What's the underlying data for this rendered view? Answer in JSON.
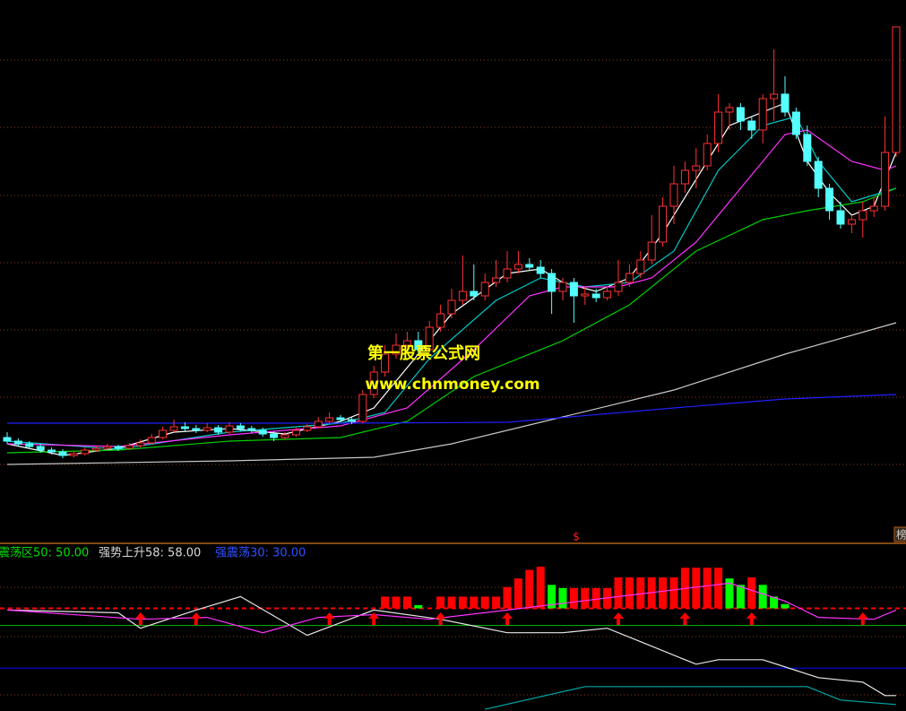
{
  "chart_data": [
    {
      "type": "candlestick",
      "xlim": [
        0,
        80
      ],
      "ylim": [
        0,
        60
      ],
      "up_color": "#ff3232",
      "down_color": "#54ffff",
      "candles": [
        [
          11.2,
          11.8,
          10.5,
          10.8
        ],
        [
          10.8,
          11.1,
          10.2,
          10.5
        ],
        [
          10.5,
          10.8,
          9.9,
          10.2
        ],
        [
          10.2,
          10.5,
          9.5,
          9.8
        ],
        [
          9.8,
          10.1,
          9.3,
          9.6
        ],
        [
          9.6,
          9.9,
          8.9,
          9.2
        ],
        [
          9.2,
          9.7,
          9.0,
          9.4
        ],
        [
          9.4,
          10.1,
          9.2,
          9.8
        ],
        [
          9.8,
          10.3,
          9.6,
          10.0
        ],
        [
          10.0,
          10.5,
          9.8,
          10.2
        ],
        [
          10.2,
          10.4,
          9.7,
          10.0
        ],
        [
          10.0,
          10.6,
          9.8,
          10.3
        ],
        [
          10.3,
          11.0,
          10.1,
          10.6
        ],
        [
          10.6,
          11.6,
          10.4,
          11.2
        ],
        [
          11.2,
          12.4,
          11.0,
          12.0
        ],
        [
          12.0,
          13.2,
          11.8,
          12.4
        ],
        [
          12.4,
          12.9,
          11.9,
          12.2
        ],
        [
          12.2,
          12.6,
          11.7,
          12.0
        ],
        [
          12.0,
          12.8,
          11.8,
          12.3
        ],
        [
          12.3,
          12.6,
          11.5,
          11.8
        ],
        [
          11.8,
          12.9,
          11.6,
          12.5
        ],
        [
          12.5,
          12.8,
          11.9,
          12.2
        ],
        [
          12.2,
          12.5,
          11.7,
          12.0
        ],
        [
          12.0,
          12.3,
          11.3,
          11.6
        ],
        [
          11.6,
          11.9,
          10.8,
          11.2
        ],
        [
          11.2,
          11.8,
          11.0,
          11.5
        ],
        [
          11.5,
          12.3,
          11.3,
          12.0
        ],
        [
          12.0,
          12.7,
          11.8,
          12.4
        ],
        [
          12.4,
          13.5,
          12.2,
          13.0
        ],
        [
          13.0,
          14.0,
          12.8,
          13.4
        ],
        [
          13.4,
          13.7,
          12.9,
          13.2
        ],
        [
          13.2,
          13.5,
          12.7,
          13.0
        ],
        [
          13.0,
          16.5,
          12.8,
          16.0
        ],
        [
          16.0,
          19.2,
          15.6,
          18.5
        ],
        [
          18.5,
          21.5,
          18.0,
          20.5
        ],
        [
          20.5,
          22.8,
          20.0,
          21.5
        ],
        [
          21.5,
          23.0,
          20.8,
          22.0
        ],
        [
          22.0,
          23.0,
          20.5,
          21.0
        ],
        [
          21.0,
          24.2,
          20.8,
          23.5
        ],
        [
          23.5,
          26.0,
          23.0,
          25.0
        ],
        [
          25.0,
          27.8,
          24.5,
          26.5
        ],
        [
          26.5,
          31.5,
          26.0,
          27.5
        ],
        [
          27.5,
          30.5,
          26.5,
          27.0
        ],
        [
          27.0,
          29.5,
          26.5,
          28.5
        ],
        [
          28.5,
          31.0,
          28.0,
          29.0
        ],
        [
          29.0,
          32.0,
          28.5,
          30.0
        ],
        [
          30.0,
          32.0,
          29.5,
          30.5
        ],
        [
          30.5,
          31.2,
          29.8,
          30.2
        ],
        [
          30.2,
          31.0,
          29.0,
          29.5
        ],
        [
          29.5,
          30.0,
          25.0,
          27.5
        ],
        [
          27.5,
          29.0,
          26.5,
          28.5
        ],
        [
          28.5,
          29.0,
          24.0,
          27.0
        ],
        [
          27.0,
          28.0,
          26.0,
          27.2
        ],
        [
          27.2,
          27.8,
          26.3,
          26.8
        ],
        [
          26.8,
          28.0,
          26.5,
          27.5
        ],
        [
          27.5,
          31.0,
          27.0,
          28.5
        ],
        [
          28.5,
          30.5,
          28.0,
          29.5
        ],
        [
          29.5,
          32.0,
          29.0,
          31.0
        ],
        [
          31.0,
          36.0,
          30.5,
          33.0
        ],
        [
          33.0,
          38.0,
          32.5,
          37.0
        ],
        [
          37.0,
          41.5,
          35.0,
          39.5
        ],
        [
          39.5,
          42.0,
          38.5,
          41.0
        ],
        [
          41.0,
          43.5,
          39.0,
          41.5
        ],
        [
          41.5,
          45.0,
          41.0,
          44.0
        ],
        [
          44.0,
          49.5,
          43.0,
          47.5
        ],
        [
          47.5,
          48.5,
          45.5,
          48.0
        ],
        [
          48.0,
          48.5,
          45.5,
          46.5
        ],
        [
          46.5,
          47.0,
          44.5,
          45.5
        ],
        [
          45.5,
          49.5,
          44.0,
          49.0
        ],
        [
          49.0,
          54.5,
          46.5,
          49.5
        ],
        [
          49.5,
          51.5,
          47.0,
          47.5
        ],
        [
          47.5,
          48.0,
          44.5,
          45.0
        ],
        [
          45.0,
          46.0,
          41.5,
          42.0
        ],
        [
          42.0,
          42.5,
          38.0,
          39.0
        ],
        [
          39.0,
          39.5,
          35.5,
          36.5
        ],
        [
          36.5,
          37.5,
          34.5,
          35.0
        ],
        [
          35.0,
          36.0,
          34.0,
          35.5
        ],
        [
          35.5,
          37.5,
          33.5,
          36.5
        ],
        [
          36.5,
          38.0,
          35.8,
          37.0
        ],
        [
          37.0,
          47.0,
          36.5,
          43.0
        ],
        [
          43.0,
          57.0,
          42.5,
          57.0
        ]
      ],
      "series": [
        {
          "color": "#ffffff",
          "x": [
            0,
            5,
            10,
            15,
            20,
            25,
            30,
            33,
            36,
            40,
            45,
            48,
            50,
            53,
            56,
            59,
            62,
            65,
            68,
            70,
            72,
            74,
            76,
            78,
            80
          ],
          "values": [
            10.5,
            9.2,
            10.0,
            11.8,
            12.2,
            11.6,
            13.0,
            14.5,
            19,
            25,
            29.5,
            30,
            28.5,
            27.5,
            29,
            34,
            40,
            46,
            47.5,
            48.5,
            42,
            38.5,
            36,
            37,
            43
          ]
        },
        {
          "color": "#00c8c8",
          "x": [
            0,
            10,
            20,
            30,
            34,
            38,
            44,
            48,
            52,
            56,
            60,
            64,
            68,
            71,
            73,
            76,
            80
          ],
          "values": [
            10.8,
            9.9,
            11.8,
            12.8,
            14,
            20,
            26.5,
            29,
            28,
            28.5,
            32,
            41,
            46,
            47,
            42,
            37.5,
            39
          ]
        },
        {
          "color": "#ff32ff",
          "x": [
            0,
            10,
            20,
            30,
            36,
            42,
            47,
            50,
            55,
            58,
            62,
            66,
            70,
            72,
            76,
            79,
            80
          ],
          "values": [
            10.5,
            10.2,
            11.5,
            12.5,
            14.5,
            21,
            27,
            28,
            28,
            29,
            33,
            39,
            45,
            45.5,
            42,
            41,
            41.5
          ]
        },
        {
          "color": "#00d000",
          "x": [
            0,
            10,
            20,
            30,
            36,
            42,
            50,
            56,
            62,
            68,
            72,
            77,
            80
          ],
          "values": [
            9.5,
            9.8,
            10.8,
            11.2,
            13,
            18,
            22,
            26,
            32,
            35.5,
            36.5,
            37.5,
            39
          ]
        },
        {
          "color": "#c8c8c8",
          "x": [
            0,
            20,
            33,
            40,
            50,
            60,
            70,
            80
          ],
          "values": [
            8.2,
            8.6,
            9.0,
            10.5,
            13.5,
            16.5,
            20.5,
            24
          ]
        },
        {
          "color": "#2020ff",
          "x": [
            0,
            30,
            45,
            60,
            70,
            80
          ],
          "values": [
            12.8,
            12.8,
            12.9,
            14.5,
            15.5,
            16
          ]
        }
      ],
      "watermark": [
        "第一股票公式网",
        "www.chnmoney.com"
      ],
      "annotations": [
        "$",
        "榜"
      ]
    },
    {
      "type": "indicator",
      "xlim": [
        0,
        80
      ],
      "ylim": [
        10,
        88
      ],
      "ref_lines": [
        {
          "label": "震荡区50: 50.00",
          "value": 50,
          "color": "#00c000",
          "text_color": "#00e000"
        },
        {
          "label": "强势上升58: 58.00",
          "value": 58,
          "color": "#ff0000",
          "text_color": "#d8d8d8"
        },
        {
          "label": "强震荡30: 30.00",
          "value": 30,
          "color": "#0000ff",
          "text_color": "#3050ff"
        }
      ],
      "bars": {
        "base": 58,
        "x": [
          34,
          35,
          36,
          37,
          39,
          40,
          41,
          42,
          43,
          44,
          45,
          46,
          47,
          48,
          49,
          50,
          51,
          52,
          53,
          54,
          55,
          56,
          57,
          58,
          59,
          60,
          61,
          62,
          63,
          64,
          65,
          66,
          67,
          68,
          69,
          70
        ],
        "values": [
          63.5,
          63.5,
          63.5,
          59.5,
          63.5,
          63.5,
          63.5,
          63.5,
          63.5,
          63.5,
          68,
          72,
          76,
          77.5,
          69,
          67.5,
          67.5,
          67.5,
          67.5,
          67.5,
          72.5,
          72.5,
          72.5,
          72.5,
          72.5,
          72.5,
          77,
          77,
          77,
          77,
          72,
          69,
          72.5,
          69,
          63.5,
          60
        ],
        "colors": [
          "#ff0000",
          "#ff0000",
          "#ff0000",
          "#00ff00",
          "#ff0000",
          "#ff0000",
          "#ff0000",
          "#ff0000",
          "#ff0000",
          "#ff0000",
          "#ff0000",
          "#ff0000",
          "#ff0000",
          "#ff0000",
          "#00ff00",
          "#00ff00",
          "#ff0000",
          "#ff0000",
          "#ff0000",
          "#ff0000",
          "#ff0000",
          "#ff0000",
          "#ff0000",
          "#ff0000",
          "#ff0000",
          "#ff0000",
          "#ff0000",
          "#ff0000",
          "#ff0000",
          "#ff0000",
          "#00ff00",
          "#00ff00",
          "#ff0000",
          "#00ff00",
          "#00ff00",
          "#00ff00"
        ]
      },
      "series": [
        {
          "color": "#e8e8e8",
          "x": [
            0,
            10,
            12,
            17,
            21,
            27,
            33,
            39,
            45,
            50,
            54,
            57,
            62,
            64,
            68,
            73,
            77,
            79,
            80
          ],
          "values": [
            57.2,
            55.9,
            48.7,
            57.2,
            63.5,
            45.4,
            57.2,
            52.9,
            46.6,
            46.6,
            48.7,
            42.4,
            31.9,
            34.0,
            34.0,
            25.6,
            23.5,
            17.2,
            17.2
          ]
        },
        {
          "color": "#ff32ff",
          "x": [
            0,
            12,
            18,
            23,
            28,
            33,
            38,
            45,
            55,
            65,
            70,
            73,
            78,
            80
          ],
          "values": [
            57.2,
            52.9,
            53.8,
            46.6,
            53.8,
            55.1,
            52.9,
            57.2,
            63.5,
            69.8,
            61.4,
            53.8,
            52.9,
            57.2
          ]
        },
        {
          "color": "#00a8a8",
          "x": [
            43,
            52,
            72,
            75,
            80
          ],
          "values": [
            10.8,
            21.4,
            21.4,
            15.1,
            13
          ]
        }
      ],
      "arrows": {
        "color": "#ff0000",
        "x": [
          12,
          17,
          29,
          33,
          39,
          45,
          55,
          61,
          67,
          77
        ]
      }
    }
  ]
}
